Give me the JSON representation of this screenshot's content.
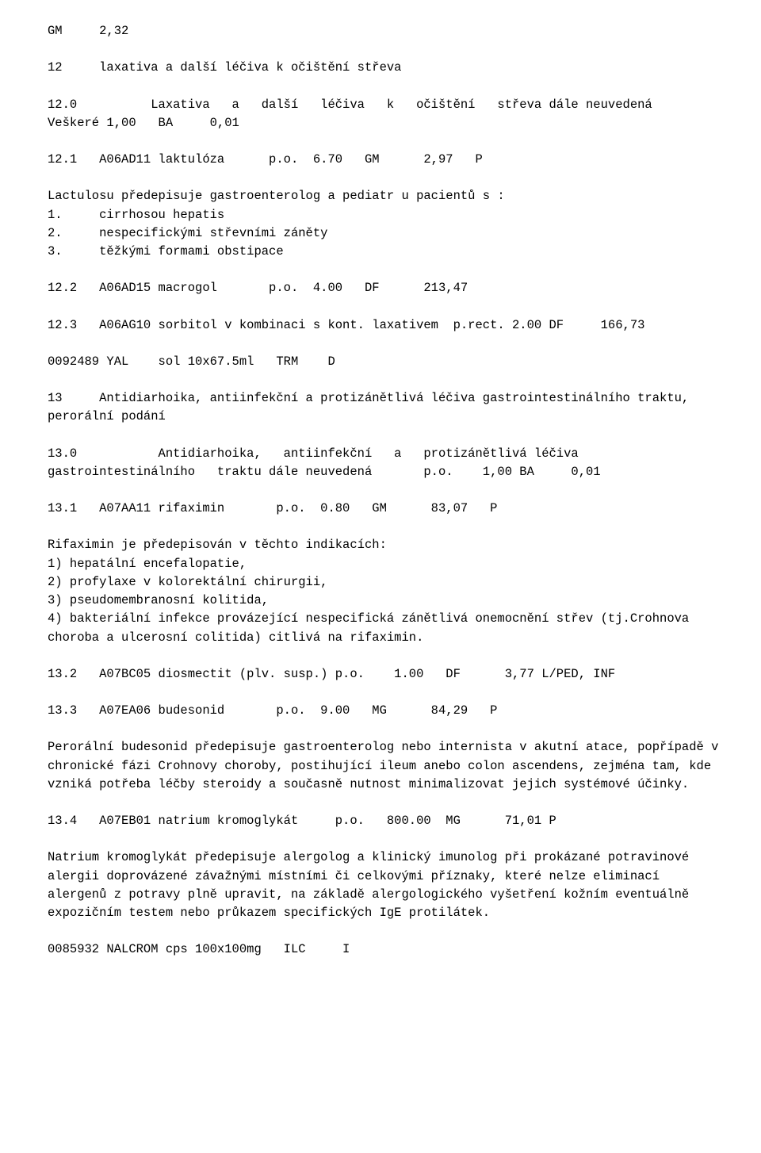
{
  "lines": {
    "l1": "GM     2,32",
    "l2": "12     laxativa a další léčiva k očištění střeva",
    "l3": "12.0          Laxativa   a   další   léčiva   k   očištění   střeva dále neuvedená   Veškeré 1,00   BA     0,01",
    "l4": "12.1   A06AD11 laktulóza      p.o.  6.70   GM      2,97   P",
    "l5": "Lactulosu předepisuje gastroenterolog a pediatr u pacientů s :",
    "l5a": "1.     cirrhosou hepatis",
    "l5b": "2.     nespecifickými střevními záněty",
    "l5c": "3.     těžkými formami obstipace",
    "l6": "12.2   A06AD15 macrogol       p.o.  4.00   DF      213,47",
    "l7": "12.3   A06AG10 sorbitol v kombinaci s kont. laxativem  p.rect. 2.00 DF     166,73",
    "l8": "0092489 YAL    sol 10x67.5ml   TRM    D",
    "l9": "13     Antidiarhoika, antiinfekční a protizánětlivá léčiva gastrointestinálního traktu, perorální podání",
    "l10": "13.0           Antidiarhoika,   antiinfekční   a   protizánětlivá léčiva gastrointestinálního   traktu dále neuvedená       p.o.    1,00 BA     0,01",
    "l11": "13.1   A07AA11 rifaximin       p.o.  0.80   GM      83,07   P",
    "l12": "Rifaximin je předepisován v těchto indikacích:",
    "l12a": "1) hepatální encefalopatie,",
    "l12b": "2) profylaxe v kolorektální chirurgii,",
    "l12c": "3) pseudomembranosní kolitida,",
    "l12d": "4) bakteriální infekce provázející nespecifická zánětlivá onemocnění střev (tj.Crohnova choroba a ulcerosní colitida) citlivá na rifaximin.",
    "l13": "13.2   A07BC05 diosmectit (plv. susp.) p.o.    1.00   DF      3,77 L/PED, INF",
    "l14": "13.3   A07EA06 budesonid       p.o.  9.00   MG      84,29   P",
    "l15": "Perorální budesonid předepisuje gastroenterolog nebo internista v akutní atace, popřípadě v chronické fázi Crohnovy choroby, postihující ileum anebo colon ascendens, zejména tam, kde vzniká potřeba léčby steroidy a současně nutnost minimalizovat jejich systémové účinky.",
    "l16": "13.4   A07EB01 natrium kromoglykát     p.o.   800.00  MG      71,01 P",
    "l17": "Natrium kromoglykát předepisuje alergolog a klinický imunolog při prokázané potravinové alergii doprovázené závažnými místními či celkovými příznaky, které nelze eliminací alergenů z potravy plně upravit, na základě alergologického vyšetření kožním eventuálně expozičním testem nebo průkazem specifických IgE protilátek.",
    "l18": "0085932 NALCROM cps 100x100mg   ILC     I"
  }
}
